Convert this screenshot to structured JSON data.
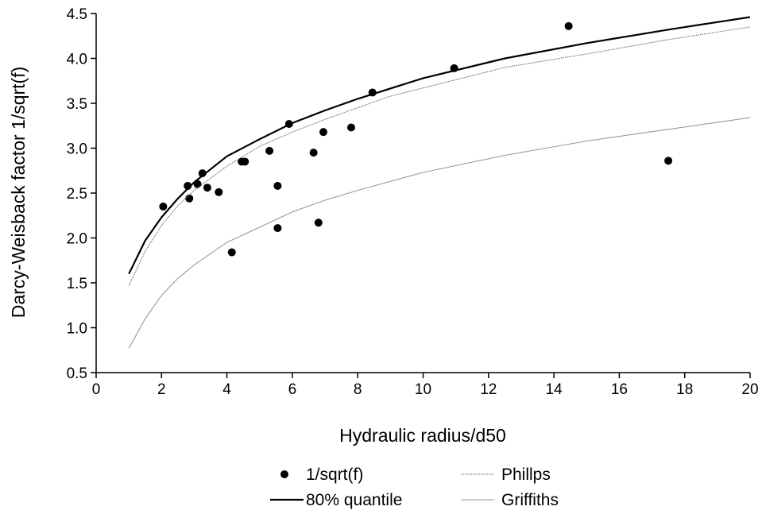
{
  "chart_data": {
    "type": "scatter",
    "title": "",
    "xlabel": "Hydraulic radius/d50",
    "ylabel": "Darcy-Weisback factor 1/sqrt(f)",
    "xlim": [
      0,
      20
    ],
    "ylim": [
      0.5,
      4.5
    ],
    "xticks": [
      "0",
      "2",
      "4",
      "6",
      "8",
      "10",
      "12",
      "14",
      "16",
      "18",
      "20"
    ],
    "yticks": [
      "0.5",
      "1.0",
      "1.5",
      "2.0",
      "2.5",
      "3.0",
      "3.5",
      "4.0",
      "4.5"
    ],
    "grid": false,
    "legend_position": "bottom",
    "series": [
      {
        "name": "1/sqrt(f)",
        "kind": "points",
        "color": "#000000",
        "points": [
          [
            2.05,
            2.35
          ],
          [
            2.8,
            2.58
          ],
          [
            2.85,
            2.44
          ],
          [
            3.1,
            2.6
          ],
          [
            3.25,
            2.72
          ],
          [
            3.4,
            2.56
          ],
          [
            3.75,
            2.51
          ],
          [
            4.15,
            1.84
          ],
          [
            4.45,
            2.85
          ],
          [
            4.55,
            2.85
          ],
          [
            5.3,
            2.97
          ],
          [
            5.55,
            2.58
          ],
          [
            5.55,
            2.11
          ],
          [
            5.9,
            3.27
          ],
          [
            6.65,
            2.95
          ],
          [
            6.8,
            2.17
          ],
          [
            6.95,
            3.18
          ],
          [
            7.8,
            3.23
          ],
          [
            8.45,
            3.62
          ],
          [
            10.95,
            3.89
          ],
          [
            14.45,
            4.36
          ],
          [
            17.5,
            2.86
          ]
        ]
      },
      {
        "name": "80% quantile",
        "kind": "line",
        "color": "#000000",
        "points": [
          [
            1.0,
            1.6
          ],
          [
            1.5,
            1.97
          ],
          [
            2.0,
            2.23
          ],
          [
            2.5,
            2.44
          ],
          [
            3.0,
            2.62
          ],
          [
            4.0,
            2.91
          ],
          [
            5.0,
            3.1
          ],
          [
            6.0,
            3.28
          ],
          [
            7.0,
            3.42
          ],
          [
            8.0,
            3.55
          ],
          [
            10.0,
            3.78
          ],
          [
            12.5,
            4.0
          ],
          [
            15.0,
            4.17
          ],
          [
            17.5,
            4.32
          ],
          [
            20.0,
            4.46
          ]
        ]
      },
      {
        "name": "Phillps",
        "kind": "line",
        "color": "#777777",
        "points": [
          [
            1.0,
            1.47
          ],
          [
            1.5,
            1.85
          ],
          [
            2.0,
            2.14
          ],
          [
            2.5,
            2.36
          ],
          [
            3.0,
            2.53
          ],
          [
            4.0,
            2.8
          ],
          [
            5.0,
            3.02
          ],
          [
            6.0,
            3.18
          ],
          [
            7.0,
            3.32
          ],
          [
            8.0,
            3.45
          ],
          [
            9.0,
            3.58
          ],
          [
            10.0,
            3.67
          ],
          [
            12.5,
            3.9
          ],
          [
            15.0,
            4.05
          ],
          [
            17.5,
            4.21
          ],
          [
            20.0,
            4.35
          ]
        ]
      },
      {
        "name": "Griffiths",
        "kind": "line",
        "color": "#999999",
        "points": [
          [
            1.0,
            0.77
          ],
          [
            1.5,
            1.1
          ],
          [
            2.0,
            1.36
          ],
          [
            2.5,
            1.55
          ],
          [
            3.0,
            1.7
          ],
          [
            4.0,
            1.95
          ],
          [
            5.0,
            2.12
          ],
          [
            6.0,
            2.29
          ],
          [
            7.0,
            2.42
          ],
          [
            8.0,
            2.53
          ],
          [
            10.0,
            2.73
          ],
          [
            12.5,
            2.92
          ],
          [
            15.0,
            3.08
          ],
          [
            17.5,
            3.21
          ],
          [
            20.0,
            3.34
          ]
        ]
      }
    ]
  }
}
